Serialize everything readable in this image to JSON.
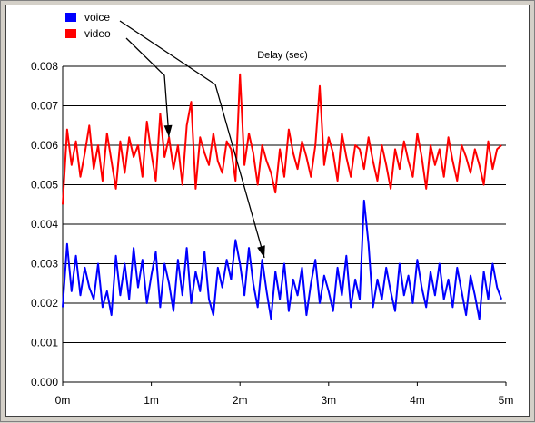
{
  "chart_data": {
    "type": "line",
    "title": "Delay (sec)",
    "xlabel": "",
    "ylabel": "",
    "x_tick_labels": [
      "0m",
      "1m",
      "2m",
      "3m",
      "4m",
      "5m"
    ],
    "y_tick_labels": [
      "0.000",
      "0.001",
      "0.002",
      "0.003",
      "0.004",
      "0.005",
      "0.006",
      "0.007",
      "0.008"
    ],
    "xlim": [
      0,
      5
    ],
    "ylim": [
      0,
      0.008
    ],
    "grid": "horizontal",
    "legend_position": "top-left",
    "series": [
      {
        "name": "voice",
        "color": "#0000ff",
        "x": [
          0.0,
          0.05,
          0.1,
          0.15,
          0.2,
          0.25,
          0.3,
          0.35,
          0.4,
          0.45,
          0.5,
          0.55,
          0.6,
          0.65,
          0.7,
          0.75,
          0.8,
          0.85,
          0.9,
          0.95,
          1.0,
          1.05,
          1.1,
          1.15,
          1.2,
          1.25,
          1.3,
          1.35,
          1.4,
          1.45,
          1.5,
          1.55,
          1.6,
          1.65,
          1.7,
          1.75,
          1.8,
          1.85,
          1.9,
          1.95,
          2.0,
          2.05,
          2.1,
          2.15,
          2.2,
          2.25,
          2.3,
          2.35,
          2.4,
          2.45,
          2.5,
          2.55,
          2.6,
          2.65,
          2.7,
          2.75,
          2.8,
          2.85,
          2.9,
          2.95,
          3.0,
          3.05,
          3.1,
          3.15,
          3.2,
          3.25,
          3.3,
          3.35,
          3.4,
          3.45,
          3.5,
          3.55,
          3.6,
          3.65,
          3.7,
          3.75,
          3.8,
          3.85,
          3.9,
          3.95,
          4.0,
          4.05,
          4.1,
          4.15,
          4.2,
          4.25,
          4.3,
          4.35,
          4.4,
          4.45,
          4.5,
          4.55,
          4.6,
          4.65,
          4.7,
          4.75,
          4.8,
          4.85,
          4.9,
          4.95
        ],
        "values": [
          0.0019,
          0.0035,
          0.0023,
          0.0032,
          0.0022,
          0.0029,
          0.0024,
          0.0021,
          0.003,
          0.0019,
          0.0023,
          0.0017,
          0.0032,
          0.0022,
          0.003,
          0.0021,
          0.0034,
          0.0024,
          0.0031,
          0.002,
          0.0027,
          0.0033,
          0.0019,
          0.003,
          0.0025,
          0.0018,
          0.0031,
          0.0022,
          0.0034,
          0.002,
          0.0028,
          0.0023,
          0.0033,
          0.0021,
          0.0017,
          0.0029,
          0.0024,
          0.0031,
          0.0026,
          0.0036,
          0.003,
          0.0022,
          0.0034,
          0.0025,
          0.0019,
          0.0031,
          0.0023,
          0.0016,
          0.0028,
          0.0021,
          0.003,
          0.0018,
          0.0026,
          0.0022,
          0.0029,
          0.0017,
          0.0025,
          0.0031,
          0.002,
          0.0027,
          0.0023,
          0.0018,
          0.0029,
          0.0022,
          0.0032,
          0.0019,
          0.0026,
          0.0021,
          0.0046,
          0.0035,
          0.0019,
          0.0026,
          0.0021,
          0.0029,
          0.0023,
          0.0018,
          0.003,
          0.0022,
          0.0027,
          0.002,
          0.0031,
          0.0024,
          0.0019,
          0.0028,
          0.0022,
          0.003,
          0.0021,
          0.0026,
          0.0019,
          0.0029,
          0.0023,
          0.0017,
          0.0027,
          0.0022,
          0.0016,
          0.0028,
          0.0021,
          0.003,
          0.0024,
          0.0021
        ]
      },
      {
        "name": "video",
        "color": "#ff0000",
        "x": [
          0.0,
          0.05,
          0.1,
          0.15,
          0.2,
          0.25,
          0.3,
          0.35,
          0.4,
          0.45,
          0.5,
          0.55,
          0.6,
          0.65,
          0.7,
          0.75,
          0.8,
          0.85,
          0.9,
          0.95,
          1.0,
          1.05,
          1.1,
          1.15,
          1.2,
          1.25,
          1.3,
          1.35,
          1.4,
          1.45,
          1.5,
          1.55,
          1.6,
          1.65,
          1.7,
          1.75,
          1.8,
          1.85,
          1.9,
          1.95,
          2.0,
          2.05,
          2.1,
          2.15,
          2.2,
          2.25,
          2.3,
          2.35,
          2.4,
          2.45,
          2.5,
          2.55,
          2.6,
          2.65,
          2.7,
          2.75,
          2.8,
          2.85,
          2.9,
          2.95,
          3.0,
          3.05,
          3.1,
          3.15,
          3.2,
          3.25,
          3.3,
          3.35,
          3.4,
          3.45,
          3.5,
          3.55,
          3.6,
          3.65,
          3.7,
          3.75,
          3.8,
          3.85,
          3.9,
          3.95,
          4.0,
          4.05,
          4.1,
          4.15,
          4.2,
          4.25,
          4.3,
          4.35,
          4.4,
          4.45,
          4.5,
          4.55,
          4.6,
          4.65,
          4.7,
          4.75,
          4.8,
          4.85,
          4.9,
          4.95
        ],
        "values": [
          0.0045,
          0.0064,
          0.0055,
          0.0061,
          0.0052,
          0.0058,
          0.0065,
          0.0054,
          0.006,
          0.0051,
          0.0063,
          0.0056,
          0.0049,
          0.0061,
          0.0053,
          0.0062,
          0.0057,
          0.006,
          0.0052,
          0.0066,
          0.0058,
          0.0051,
          0.0068,
          0.0057,
          0.0062,
          0.0054,
          0.006,
          0.005,
          0.0065,
          0.0071,
          0.0049,
          0.0062,
          0.0058,
          0.0055,
          0.0063,
          0.0056,
          0.0053,
          0.0061,
          0.0059,
          0.0051,
          0.0078,
          0.0055,
          0.0063,
          0.0058,
          0.005,
          0.006,
          0.0056,
          0.0053,
          0.0048,
          0.0059,
          0.0052,
          0.0064,
          0.0058,
          0.0054,
          0.0061,
          0.0057,
          0.0052,
          0.006,
          0.0075,
          0.0055,
          0.0062,
          0.0058,
          0.0051,
          0.0063,
          0.0057,
          0.0052,
          0.006,
          0.0059,
          0.0054,
          0.0062,
          0.0056,
          0.0051,
          0.006,
          0.0055,
          0.0049,
          0.0059,
          0.0054,
          0.0061,
          0.0056,
          0.0052,
          0.0063,
          0.0057,
          0.0049,
          0.006,
          0.0055,
          0.0059,
          0.0052,
          0.0062,
          0.0056,
          0.0051,
          0.006,
          0.0057,
          0.0053,
          0.0059,
          0.0055,
          0.005,
          0.0061,
          0.0054,
          0.0059,
          0.006
        ]
      }
    ]
  }
}
